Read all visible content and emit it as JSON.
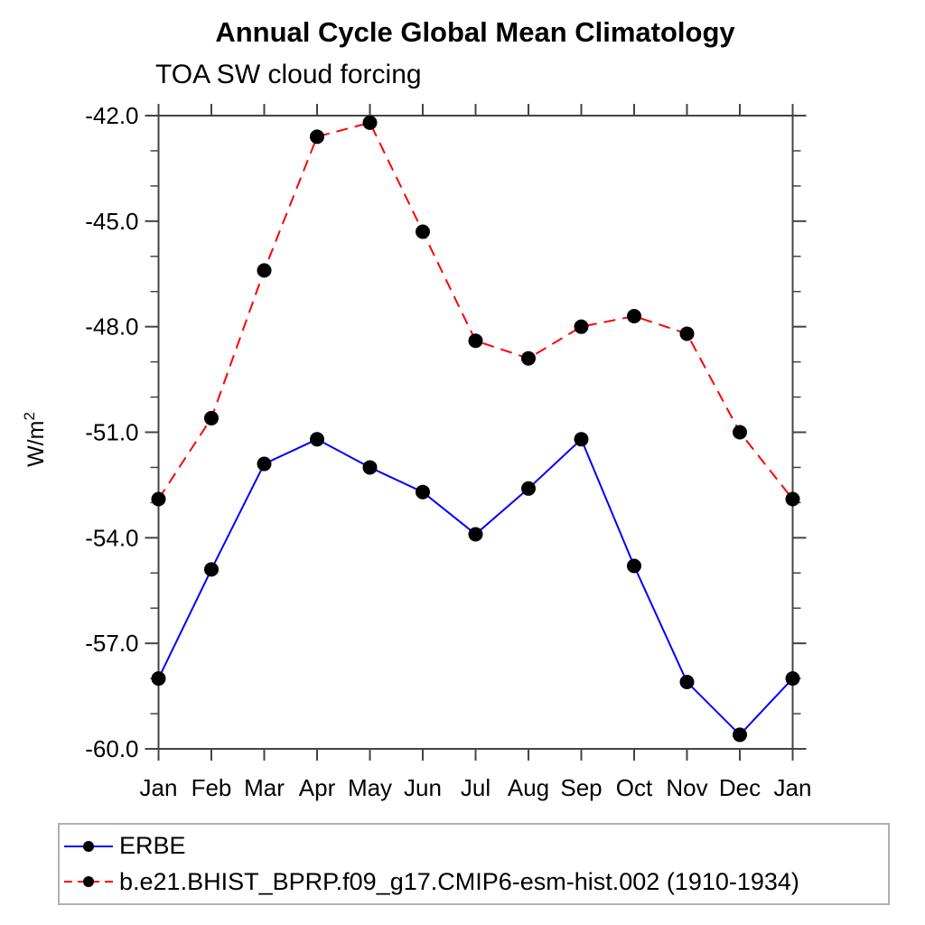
{
  "chart_data": {
    "type": "line",
    "title": "Annual Cycle Global Mean Climatology",
    "subtitle": "TOA SW cloud forcing",
    "ylabel": "W/m²",
    "xlabel": "",
    "categories": [
      "Jan",
      "Feb",
      "Mar",
      "Apr",
      "May",
      "Jun",
      "Jul",
      "Aug",
      "Sep",
      "Oct",
      "Nov",
      "Dec",
      "Jan"
    ],
    "ylim": [
      -60.0,
      -42.0
    ],
    "yticks_major": [
      -42.0,
      -45.0,
      -48.0,
      -51.0,
      -54.0,
      -57.0,
      -60.0
    ],
    "ytick_labels": [
      "-42.0",
      "-45.0",
      "-48.0",
      "-51.0",
      "-54.0",
      "-57.0",
      "-60.0"
    ],
    "minor_tick_step": 1.0,
    "grid": false,
    "legend_position": "bottom-left-box",
    "marker": {
      "shape": "circle",
      "color": "#000000"
    },
    "axis_color": "#444444",
    "series": [
      {
        "name": "ERBE",
        "color": "#0000ff",
        "line_style": "solid",
        "values": [
          -58.0,
          -54.9,
          -51.9,
          -51.2,
          -52.0,
          -52.7,
          -53.9,
          -52.6,
          -51.2,
          -54.8,
          -58.1,
          -59.6,
          -58.0
        ]
      },
      {
        "name": "b.e21.BHIST_BPRP.f09_g17.CMIP6-esm-hist.002 (1910-1934)",
        "color": "#ff0000",
        "line_style": "dashed",
        "values": [
          -52.9,
          -50.6,
          -46.4,
          -42.6,
          -42.2,
          -45.3,
          -48.4,
          -48.9,
          -48.0,
          -47.7,
          -48.2,
          -51.0,
          -52.9
        ]
      }
    ]
  }
}
